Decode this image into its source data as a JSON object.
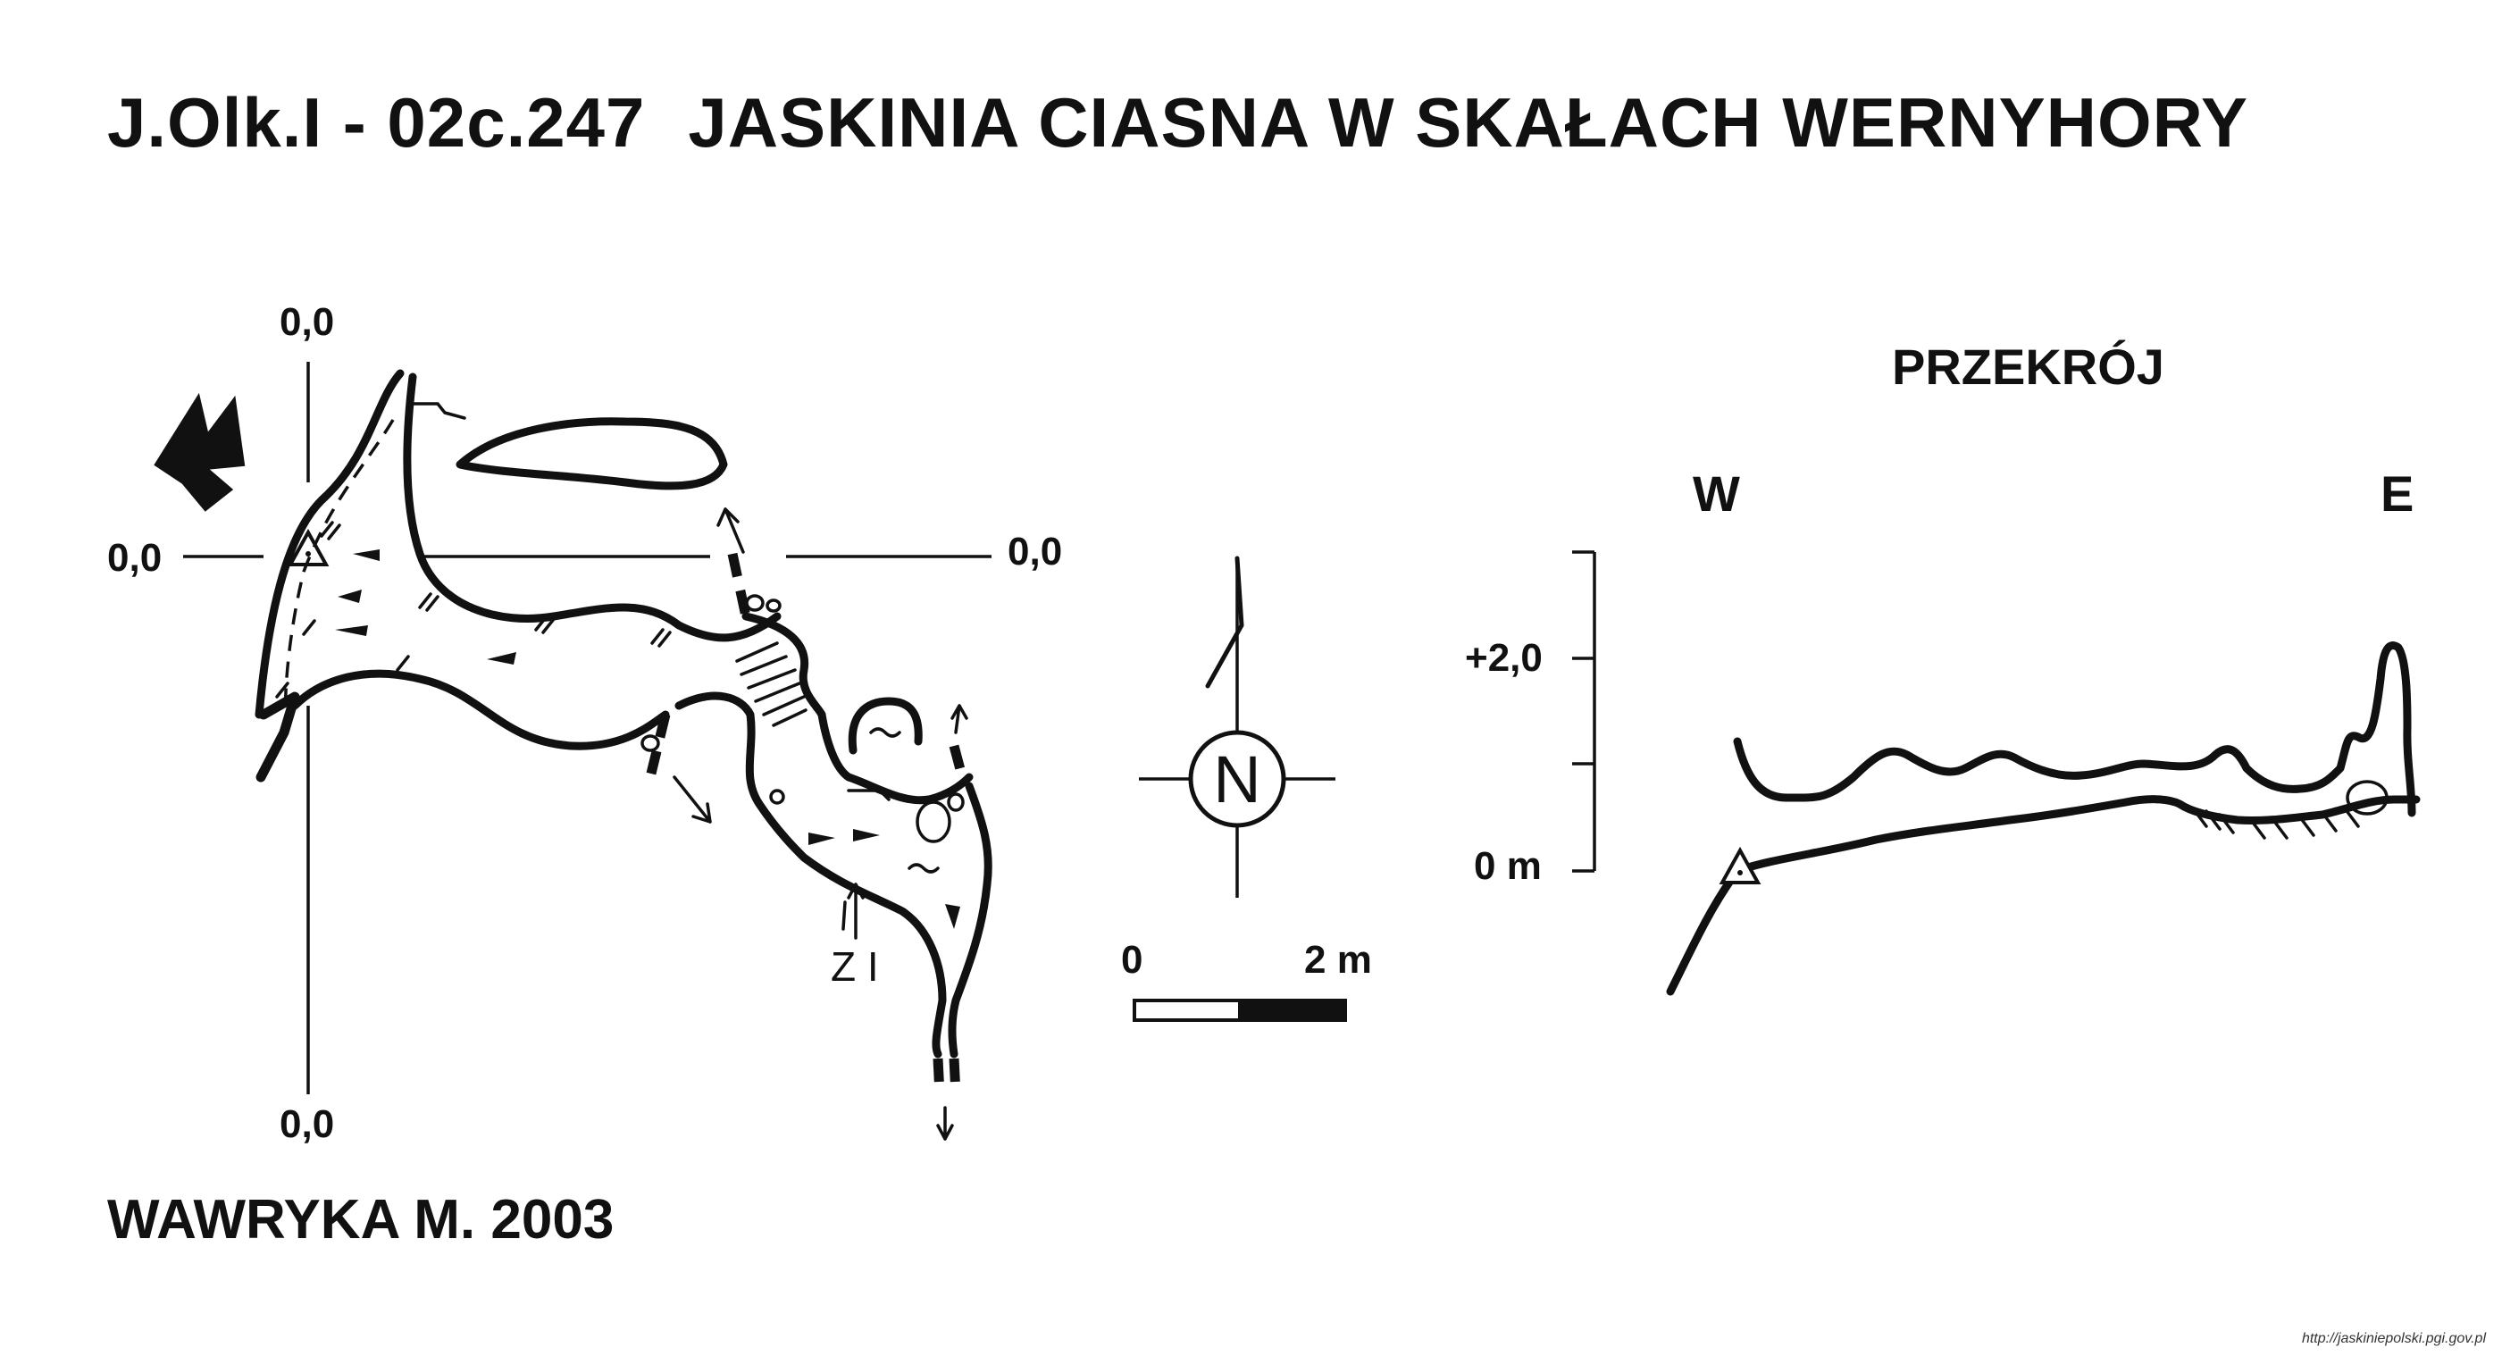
{
  "title": {
    "code": "J.Olk.I - 02c.247",
    "name": "JASKINIA CIASNA W SKAŁACH WERNYHORY"
  },
  "plan": {
    "coord_top": "0,0",
    "coord_bottom": "0,0",
    "coord_left": "0,0",
    "coord_right": "0,0",
    "marker_label": "Z I"
  },
  "north": {
    "letter": "N"
  },
  "scale": {
    "start": "0",
    "end": "2 m"
  },
  "section": {
    "heading": "PRZEKRÓJ",
    "west": "W",
    "east": "E",
    "tick_upper": "+2,0",
    "tick_zero": "0 m"
  },
  "author": "WAWRYKA M. 2003",
  "footer": "http://jaskiniepolski.pgi.gov.pl"
}
